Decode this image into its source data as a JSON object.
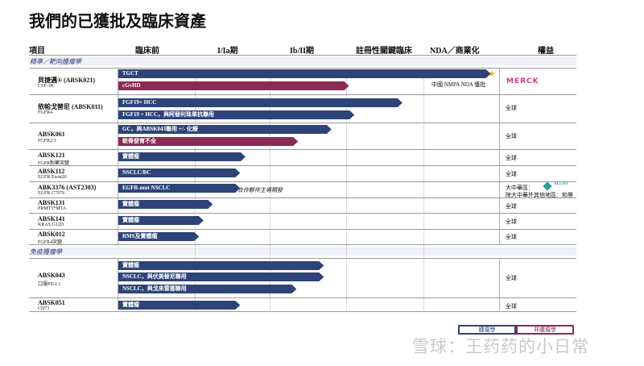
{
  "title": "我們的已獲批及臨床資產",
  "columns": [
    "項目",
    "臨床前",
    "I/Ia期",
    "Ib/II期",
    "註冊性關鍵臨床",
    "NDA／商業化",
    "權益"
  ],
  "sections": [
    "精準／靶向腫瘤學",
    "免疫腫瘤學"
  ],
  "rows": [
    {
      "name": "貝捷邁® (ABSK021)",
      "sub": "CSF-1R",
      "rights": ""
    },
    {
      "name": "依帕戈替尼 (ABSK011)",
      "sub": "FGFR4",
      "rights": "全球"
    },
    {
      "name": "ABSK061",
      "sub": "FGFR2/3",
      "rights": "全球"
    },
    {
      "name": "ABSK121",
      "sub": "FGFR耐藥突變",
      "rights": "全球"
    },
    {
      "name": "ABSK112",
      "sub": "EGFR Exon20",
      "rights": "全球"
    },
    {
      "name": "ABK3376 (AST2303)",
      "sub": "EGFR C797S",
      "rights": "大中華區："
    },
    {
      "name": "ABSK131",
      "sub": "PRMT5*MTA",
      "rights": "全球"
    },
    {
      "name": "ABSK141",
      "sub": "KRAS G12D",
      "rights": "全球"
    },
    {
      "name": "ABSK012",
      "sub": "FGFR4突變",
      "rights": "全球"
    },
    {
      "name": "ABSK043",
      "sub": "口服PD-L1",
      "rights": "全球"
    },
    {
      "name": "ABSK051",
      "sub": "CD73",
      "rights": "全球"
    }
  ],
  "rights_extra": "除大中華外其他地區：和譽",
  "partner_logo": "MERCK",
  "partner_logo2": "ALLIST",
  "notes": {
    "nmpa": "中國 NMPA NDA 獲批",
    "partner": "合作夥伴主導開發"
  },
  "legend": {
    "oncology": "腫瘤學",
    "non_oncology": "非腫瘤學"
  },
  "watermark": "雪球：王药药的小日常",
  "colors": {
    "oncology": "#2e4478",
    "non_oncology": "#8b2a55",
    "star": "#f2b51c"
  },
  "chart_data": {
    "type": "bar",
    "orientation": "horizontal",
    "title": "我們的已獲批及臨床資產",
    "stage_axis": [
      "臨床前",
      "I/Ia期",
      "Ib/II期",
      "註冊性關鍵臨床",
      "NDA／商業化"
    ],
    "units": "development stage (0 = 臨床前 start, 5 = end of NDA／商業化)",
    "xlim": [
      0,
      5
    ],
    "series": [
      {
        "name": "腫瘤學",
        "bars": [
          {
            "program": "ABSK021",
            "indication": "TGCT",
            "value": 4.89
          },
          {
            "program": "ABSK011",
            "indication": "FGF19+ HCC",
            "value": 3.73
          },
          {
            "program": "ABSK011",
            "indication": "FGF19 + HCC，與阿替利珠單抗聯用",
            "value": 3.1
          },
          {
            "program": "ABSK061",
            "indication": "GC，與ABSK043聯用 +/- 化療",
            "value": 2.8
          },
          {
            "program": "ABSK121",
            "indication": "實體瘤",
            "value": 1.67
          },
          {
            "program": "ABSK112",
            "indication": "NSCLC/BC",
            "value": 1.6
          },
          {
            "program": "ABK3376 (AST2303)",
            "indication": "EGFR-mut NSCLC",
            "value": 1.6
          },
          {
            "program": "ABSK131",
            "indication": "實體瘤",
            "value": 1.24
          },
          {
            "program": "ABSK141",
            "indication": "實體瘤",
            "value": 1.12
          },
          {
            "program": "ABSK012",
            "indication": "RMS及實體瘤",
            "value": 1.06
          },
          {
            "program": "ABSK043",
            "indication": "實體瘤",
            "value": 2.7
          },
          {
            "program": "ABSK043",
            "indication": "NSCLC，與伏美替尼聯用",
            "value": 2.7
          },
          {
            "program": "ABSK043",
            "indication": "NSCLC，與戈来雷塞聯用",
            "value": 2.34
          },
          {
            "program": "ABSK051",
            "indication": "實體瘤",
            "value": 1.6
          }
        ]
      },
      {
        "name": "非腫瘤學",
        "bars": [
          {
            "program": "ABSK021",
            "indication": "cGvHD",
            "value": 3.03
          },
          {
            "program": "ABSK061",
            "indication": "軟骨發育不全",
            "value": 2.36
          }
        ]
      }
    ]
  }
}
